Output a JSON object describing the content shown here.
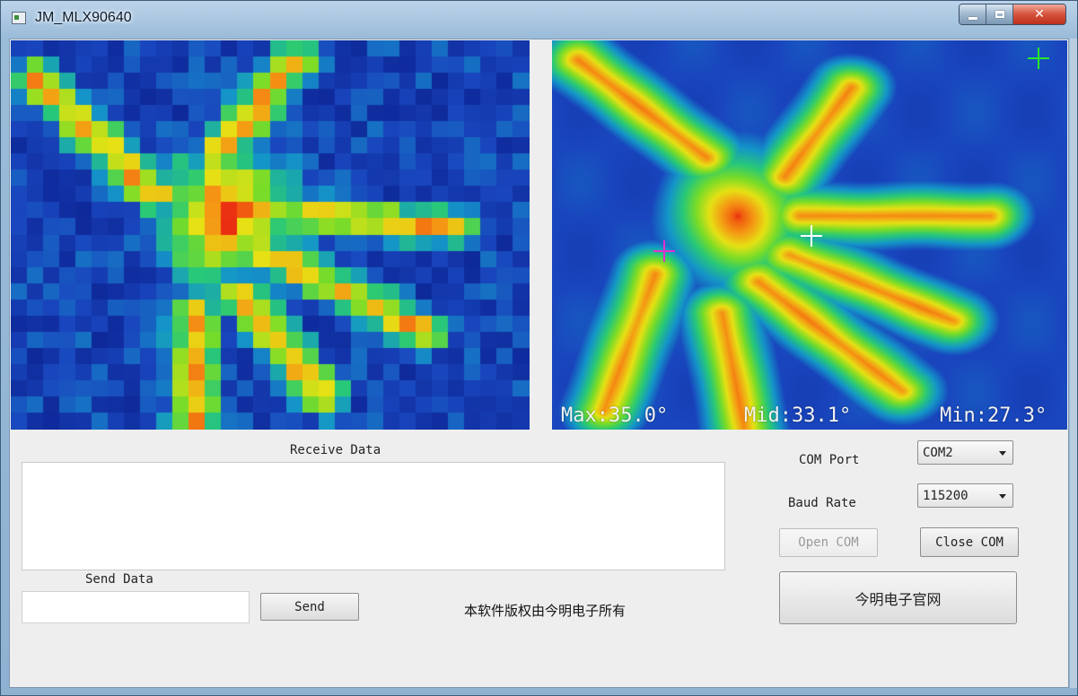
{
  "window": {
    "title": "JM_MLX90640",
    "caption_buttons": [
      "minimize",
      "maximize",
      "close"
    ]
  },
  "thermal": {
    "max_label": "Max:35.0°",
    "mid_label": "Mid:33.1°",
    "min_label": "Min:27.3°",
    "crosshair_colors": {
      "max": "#e32fd0",
      "mid": "#ffffff",
      "min": "#27e82a"
    }
  },
  "receive": {
    "label": "Receive Data",
    "content": ""
  },
  "send": {
    "label": "Send Data",
    "input_value": "",
    "button_label": "Send"
  },
  "serial": {
    "com_port_label": "COM Port",
    "com_port_value": "COM2",
    "baud_rate_label": "Baud Rate",
    "baud_rate_value": "115200",
    "open_label": "Open COM",
    "close_label": "Close COM",
    "open_enabled": false
  },
  "website_button": "今明电子官网",
  "copyright": "本软件版权由今明电子所有"
}
